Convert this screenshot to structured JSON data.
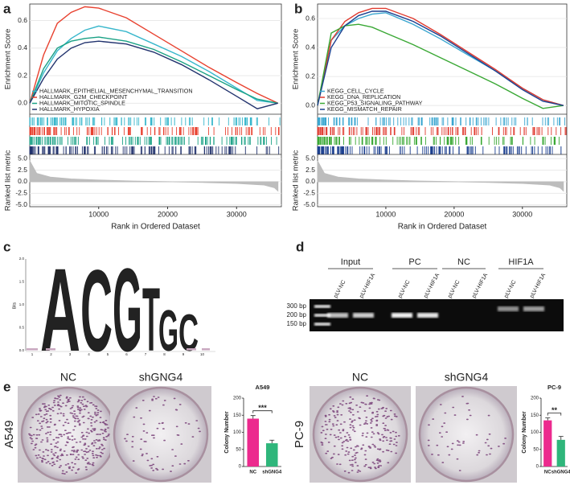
{
  "panel_labels": [
    "a",
    "b",
    "c",
    "d",
    "e"
  ],
  "chart_data": [
    {
      "type": "line",
      "ylabel": "Enrichment Score",
      "x": [
        0,
        2000,
        4000,
        6000,
        8000,
        10000,
        14000,
        18000,
        22000,
        26000,
        30000,
        33000,
        36000
      ],
      "series": [
        {
          "name": "HALLMARK_EPITHELIAL_MESENCHYMAL_TRANSITION",
          "color": "#39b7cc",
          "values": [
            0,
            0.22,
            0.38,
            0.47,
            0.53,
            0.56,
            0.52,
            0.43,
            0.34,
            0.23,
            0.11,
            0.02,
            0
          ]
        },
        {
          "name": "HALLMARK_G2M_CHECKPOINT",
          "color": "#e8412f",
          "values": [
            0,
            0.35,
            0.58,
            0.66,
            0.7,
            0.69,
            0.62,
            0.5,
            0.38,
            0.26,
            0.15,
            0.07,
            0
          ]
        },
        {
          "name": "HALLMARK_MITOTIC_SPINDLE",
          "color": "#1aa185",
          "values": [
            0,
            0.25,
            0.4,
            0.45,
            0.47,
            0.48,
            0.45,
            0.39,
            0.3,
            0.2,
            0.1,
            0.03,
            0
          ]
        },
        {
          "name": "HALLMARK_HYPOXIA",
          "color": "#22336e",
          "values": [
            0,
            0.18,
            0.32,
            0.4,
            0.44,
            0.45,
            0.43,
            0.37,
            0.28,
            0.17,
            0.05,
            -0.04,
            0
          ]
        }
      ],
      "xlim": [
        0,
        36500
      ],
      "ylim": [
        -0.08,
        0.72
      ],
      "yticks": [
        {
          "value": 0,
          "label": "0.0"
        },
        0.2,
        0.4,
        0.6
      ],
      "grid": true,
      "legend": "lower-left"
    },
    {
      "type": "area",
      "ylabel": "Ranked list metric",
      "xlabel": "Rank in Ordered Dataset",
      "x": [
        0,
        1000,
        3000,
        6000,
        10000,
        15000,
        20000,
        25000,
        30000,
        34000,
        35500,
        36000
      ],
      "values": [
        4.5,
        1.8,
        1.0,
        0.6,
        0.35,
        0.15,
        0,
        -0.15,
        -0.35,
        -0.7,
        -1.3,
        -2
      ],
      "color": "#bdbdbd",
      "xlim": [
        0,
        36500
      ],
      "ylim": [
        -5.4,
        5.9
      ],
      "xticks": [
        10000,
        20000,
        30000
      ],
      "yticks": [
        {
          "value": 5,
          "label": "5.0"
        },
        2.5,
        {
          "value": 0,
          "label": "0.0"
        },
        -2.5,
        {
          "value": -5,
          "label": "-5.0"
        }
      ],
      "grid": true
    },
    {
      "type": "line",
      "ylabel": "Enrichment Score",
      "x": [
        0,
        2000,
        4000,
        6000,
        8000,
        10000,
        14000,
        18000,
        22000,
        26000,
        30000,
        33000,
        36000
      ],
      "series": [
        {
          "name": "KEGG_CELL_CYCLE",
          "color": "#3aa6d0",
          "values": [
            0,
            0.45,
            0.55,
            0.6,
            0.63,
            0.64,
            0.56,
            0.46,
            0.35,
            0.24,
            0.12,
            0.04,
            0
          ]
        },
        {
          "name": "KEGG_DNA_REPLICATION",
          "color": "#e03a2f",
          "values": [
            0,
            0.45,
            0.58,
            0.64,
            0.67,
            0.67,
            0.6,
            0.49,
            0.37,
            0.25,
            0.12,
            0.04,
            0
          ]
        },
        {
          "name": "KEGG_P53_SIGNALING_PATHWAY",
          "color": "#3aa835",
          "values": [
            0,
            0.5,
            0.55,
            0.56,
            0.54,
            0.5,
            0.42,
            0.33,
            0.24,
            0.15,
            0.05,
            -0.02,
            0
          ]
        },
        {
          "name": "KEGG_MISMATCH_REPAIR",
          "color": "#1b3f8f",
          "values": [
            0,
            0.4,
            0.55,
            0.62,
            0.65,
            0.65,
            0.58,
            0.48,
            0.36,
            0.24,
            0.11,
            0.03,
            0
          ]
        }
      ],
      "xlim": [
        0,
        36500
      ],
      "ylim": [
        -0.06,
        0.7
      ],
      "yticks": [
        {
          "value": 0,
          "label": "0.0"
        },
        0.2,
        0.4,
        0.6
      ],
      "grid": true,
      "legend": "lower-left"
    },
    {
      "type": "area",
      "ylabel": "Ranked list metric",
      "xlabel": "Rank in Ordered Dataset",
      "x": [
        0,
        1000,
        3000,
        6000,
        10000,
        15000,
        20000,
        25000,
        30000,
        34000,
        35500,
        36000
      ],
      "values": [
        4.5,
        1.8,
        1.0,
        0.6,
        0.35,
        0.15,
        0,
        -0.15,
        -0.35,
        -0.7,
        -1.3,
        -2
      ],
      "color": "#bdbdbd",
      "xlim": [
        0,
        36500
      ],
      "ylim": [
        -5.4,
        5.9
      ],
      "xticks": [
        10000,
        20000,
        30000
      ],
      "yticks": [
        {
          "value": 5,
          "label": "5.0"
        },
        2.5,
        {
          "value": 0,
          "label": "0.0"
        },
        -2.5,
        {
          "value": -5,
          "label": "-5.0"
        }
      ],
      "grid": true
    },
    {
      "type": "bar",
      "title": "A549",
      "ylabel": "Colony Number",
      "categories": [
        "NC",
        "shGNG4"
      ],
      "values": [
        140,
        68
      ],
      "errors": [
        9,
        9
      ],
      "colors": [
        "#ec2a8e",
        "#2fb67b"
      ],
      "ylim": [
        0,
        200
      ],
      "yticks": [
        0,
        50,
        100,
        150,
        200
      ],
      "annotation": "***"
    },
    {
      "type": "bar",
      "title": "PC-9",
      "ylabel": "Colony Number",
      "categories": [
        "NC",
        "shGNG4"
      ],
      "values": [
        135,
        78
      ],
      "errors": [
        7,
        10
      ],
      "colors": [
        "#ec2a8e",
        "#2fb67b"
      ],
      "ylim": [
        0,
        200
      ],
      "yticks": [
        0,
        50,
        100,
        150,
        200
      ],
      "annotation": "**"
    }
  ],
  "motif": {
    "ylabel": "Bits",
    "yticks": [
      "2.0",
      "1.5",
      "1.0",
      "0.5",
      "0.0"
    ],
    "positions": [
      "1",
      "2",
      "3",
      "4",
      "5",
      "6",
      "7",
      "8",
      "9",
      "10"
    ],
    "letters": [
      "A",
      "C",
      "G",
      "T",
      "G",
      "C"
    ]
  },
  "gel": {
    "groups": [
      "Input",
      "PC",
      "NC",
      "HIF1A"
    ],
    "lanes": [
      "pLV-NC",
      "pLV-HIF1A",
      "pLV-NC",
      "pLV-HIF1A",
      "pLV-NC",
      "pLV-HIF1A",
      "pLV-NC",
      "pLV-HIF1A"
    ],
    "markers": [
      "300 bp",
      "200 bp",
      "150 bp"
    ]
  },
  "colony": {
    "columns": [
      "NC",
      "shGNG4",
      "NC",
      "shGNG4"
    ],
    "rows": [
      "A549",
      "PC-9"
    ]
  }
}
